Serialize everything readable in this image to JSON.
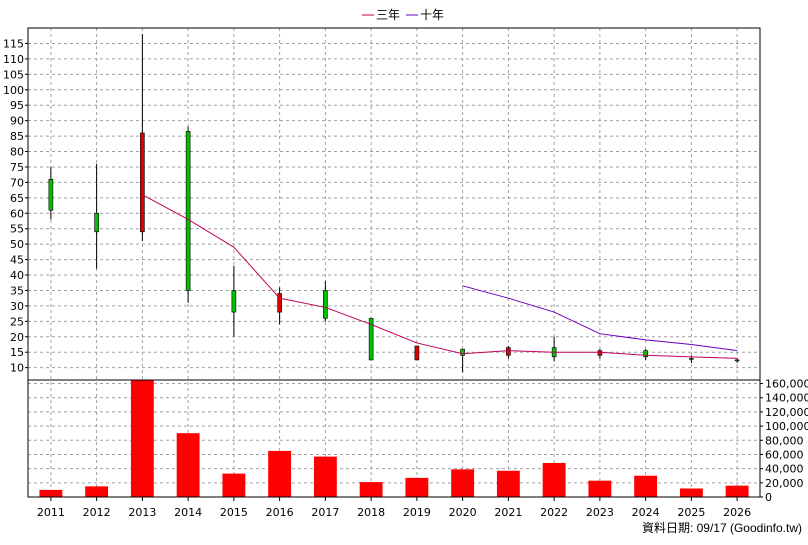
{
  "legend": {
    "items": [
      {
        "label": "三年",
        "color": "#c0005a"
      },
      {
        "label": "十年",
        "color": "#6a00c0"
      }
    ]
  },
  "footer": {
    "credit": "資料日期: 09/17  (Goodinfo.tw)"
  },
  "colors": {
    "up": "#00c000",
    "down": "#e00000",
    "volume": "#ff0000",
    "grid": "#a0a0a0",
    "three_year": "#c0005a",
    "ten_year": "#6a00c0"
  },
  "chart_data": [
    {
      "type": "candlestick",
      "title": "",
      "categories": [
        "2011",
        "2012",
        "2013",
        "2014",
        "2015",
        "2016",
        "2017",
        "2018",
        "2019",
        "2020",
        "2021",
        "2022",
        "2023",
        "2024",
        "2025",
        "2026"
      ],
      "ylim": [
        6,
        120
      ],
      "yticks": [
        10,
        15,
        20,
        25,
        30,
        35,
        40,
        45,
        50,
        55,
        60,
        65,
        70,
        75,
        80,
        85,
        90,
        95,
        100,
        105,
        110,
        115
      ],
      "grid": true,
      "ohlc": [
        {
          "year": "2011",
          "open": 61,
          "high": 75,
          "low": 58,
          "close": 71
        },
        {
          "year": "2012",
          "open": 54,
          "high": 76,
          "low": 42,
          "close": 60
        },
        {
          "year": "2013",
          "open": 86,
          "high": 118,
          "low": 51,
          "close": 54
        },
        {
          "year": "2014",
          "open": 35,
          "high": 88,
          "low": 31,
          "close": 86.5
        },
        {
          "year": "2015",
          "open": 28,
          "high": 43,
          "low": 20,
          "close": 35
        },
        {
          "year": "2016",
          "open": 34,
          "high": 36,
          "low": 24,
          "close": 28
        },
        {
          "year": "2017",
          "open": 26,
          "high": 38,
          "low": 25,
          "close": 35
        },
        {
          "year": "2018",
          "open": 12.5,
          "high": 26,
          "low": 12.5,
          "close": 26
        },
        {
          "year": "2019",
          "open": 17,
          "high": 17,
          "low": 12.5,
          "close": 12.5
        },
        {
          "year": "2020",
          "open": 14,
          "high": 16,
          "low": 8.5,
          "close": 16
        },
        {
          "year": "2021",
          "open": 16.5,
          "high": 17,
          "low": 13,
          "close": 14
        },
        {
          "year": "2022",
          "open": 13.5,
          "high": 20,
          "low": 12,
          "close": 16.5
        },
        {
          "year": "2023",
          "open": 15.5,
          "high": 16,
          "low": 13,
          "close": 14
        },
        {
          "year": "2024",
          "open": 13.5,
          "high": 16,
          "low": 12.5,
          "close": 15.5
        },
        {
          "year": "2025",
          "open": 13,
          "high": 14,
          "low": 11.5,
          "close": 13
        },
        {
          "year": "2026",
          "open": 12.5,
          "high": 13,
          "low": 11.5,
          "close": 12.5
        }
      ],
      "series": [
        {
          "name": "三年",
          "values": [
            null,
            null,
            66,
            58,
            49,
            32.5,
            29.5,
            24,
            18,
            14.5,
            15.5,
            15,
            15,
            14,
            13.5,
            13
          ]
        },
        {
          "name": "十年",
          "values": [
            null,
            null,
            null,
            null,
            null,
            null,
            null,
            null,
            null,
            36.5,
            32.5,
            28,
            21,
            19,
            17.5,
            15.5
          ]
        }
      ]
    },
    {
      "type": "bar",
      "title": "",
      "categories": [
        "2011",
        "2012",
        "2013",
        "2014",
        "2015",
        "2016",
        "2017",
        "2018",
        "2019",
        "2020",
        "2021",
        "2022",
        "2023",
        "2024",
        "2025",
        "2026"
      ],
      "values": [
        10000,
        15000,
        165000,
        90000,
        33000,
        65000,
        57000,
        21000,
        27000,
        39000,
        37000,
        48000,
        23000,
        30000,
        12000,
        16000
      ],
      "ylim": [
        0,
        165000
      ],
      "yticks": [
        0,
        20000,
        40000,
        60000,
        80000,
        100000,
        120000,
        140000,
        160000
      ],
      "ytick_labels": [
        "0",
        "20,000",
        "40,000",
        "60,000",
        "80,000",
        "100,000",
        "120,000",
        "140,000",
        "160,000"
      ],
      "grid": true
    }
  ]
}
